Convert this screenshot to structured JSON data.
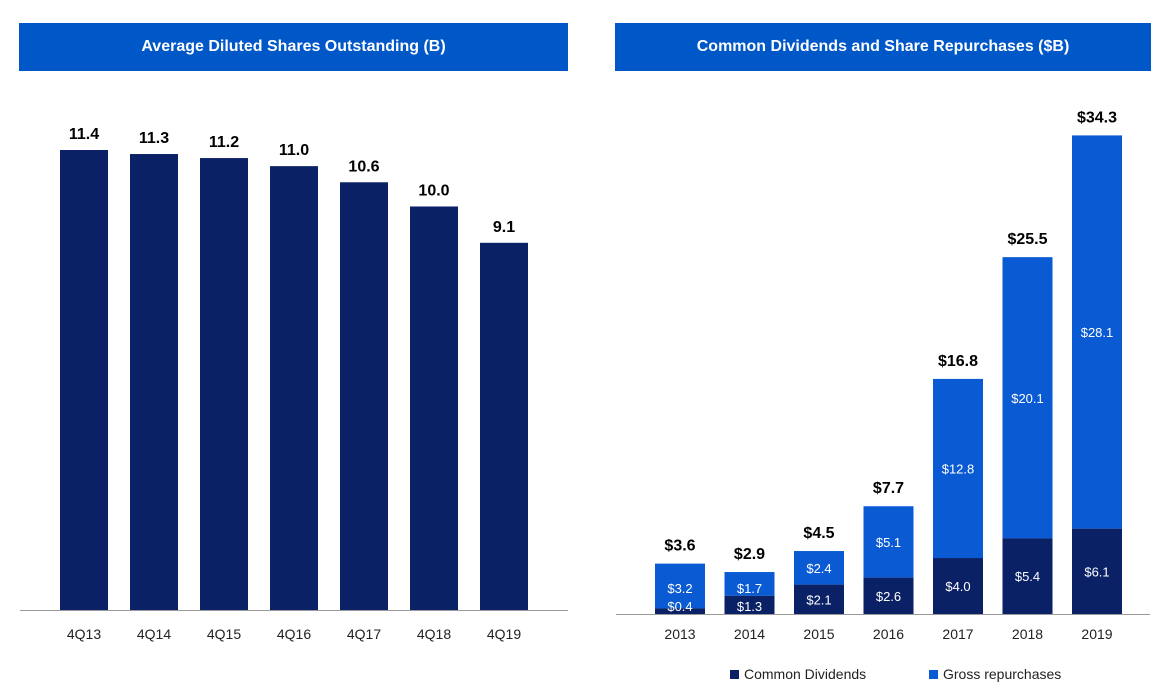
{
  "colors": {
    "banner": "#0057C8",
    "dark_bar": "#0A2166",
    "blue_bar": "#0A5BD3",
    "axis": "#9A9A9A"
  },
  "chart_data": [
    {
      "type": "bar",
      "title": "Average Diluted Shares Outstanding (B)",
      "categories": [
        "4Q13",
        "4Q14",
        "4Q15",
        "4Q16",
        "4Q17",
        "4Q18",
        "4Q19"
      ],
      "values": [
        11.4,
        11.3,
        11.2,
        11.0,
        10.6,
        10.0,
        9.1
      ],
      "value_labels": [
        "11.4",
        "11.3",
        "11.2",
        "11.0",
        "10.6",
        "10.0",
        "9.1"
      ],
      "ylim": [
        0,
        11.4
      ],
      "grid": false,
      "legend": "none"
    },
    {
      "type": "bar",
      "stacked": true,
      "title": "Common Dividends and Share Repurchases ($B)",
      "categories": [
        "2013",
        "2014",
        "2015",
        "2016",
        "2017",
        "2018",
        "2019"
      ],
      "series": [
        {
          "name": "Common Dividends",
          "values": [
            0.4,
            1.3,
            2.1,
            2.6,
            4.0,
            5.4,
            6.1
          ],
          "labels": [
            "$0.4",
            "$1.3",
            "$2.1",
            "$2.6",
            "$4.0",
            "$5.4",
            "$6.1"
          ]
        },
        {
          "name": "Gross repurchases",
          "values": [
            3.2,
            1.7,
            2.4,
            5.1,
            12.8,
            20.1,
            28.1
          ],
          "labels": [
            "$3.2",
            "$1.7",
            "$2.4",
            "$5.1",
            "$12.8",
            "$20.1",
            "$28.1"
          ]
        }
      ],
      "totals": [
        3.6,
        2.9,
        4.5,
        7.7,
        16.8,
        25.5,
        34.3
      ],
      "total_labels": [
        "$3.6",
        "$2.9",
        "$4.5",
        "$7.7",
        "$16.8",
        "$25.5",
        "$34.3"
      ],
      "ylim": [
        0,
        34.3
      ],
      "grid": false,
      "legend": "bottom"
    }
  ]
}
